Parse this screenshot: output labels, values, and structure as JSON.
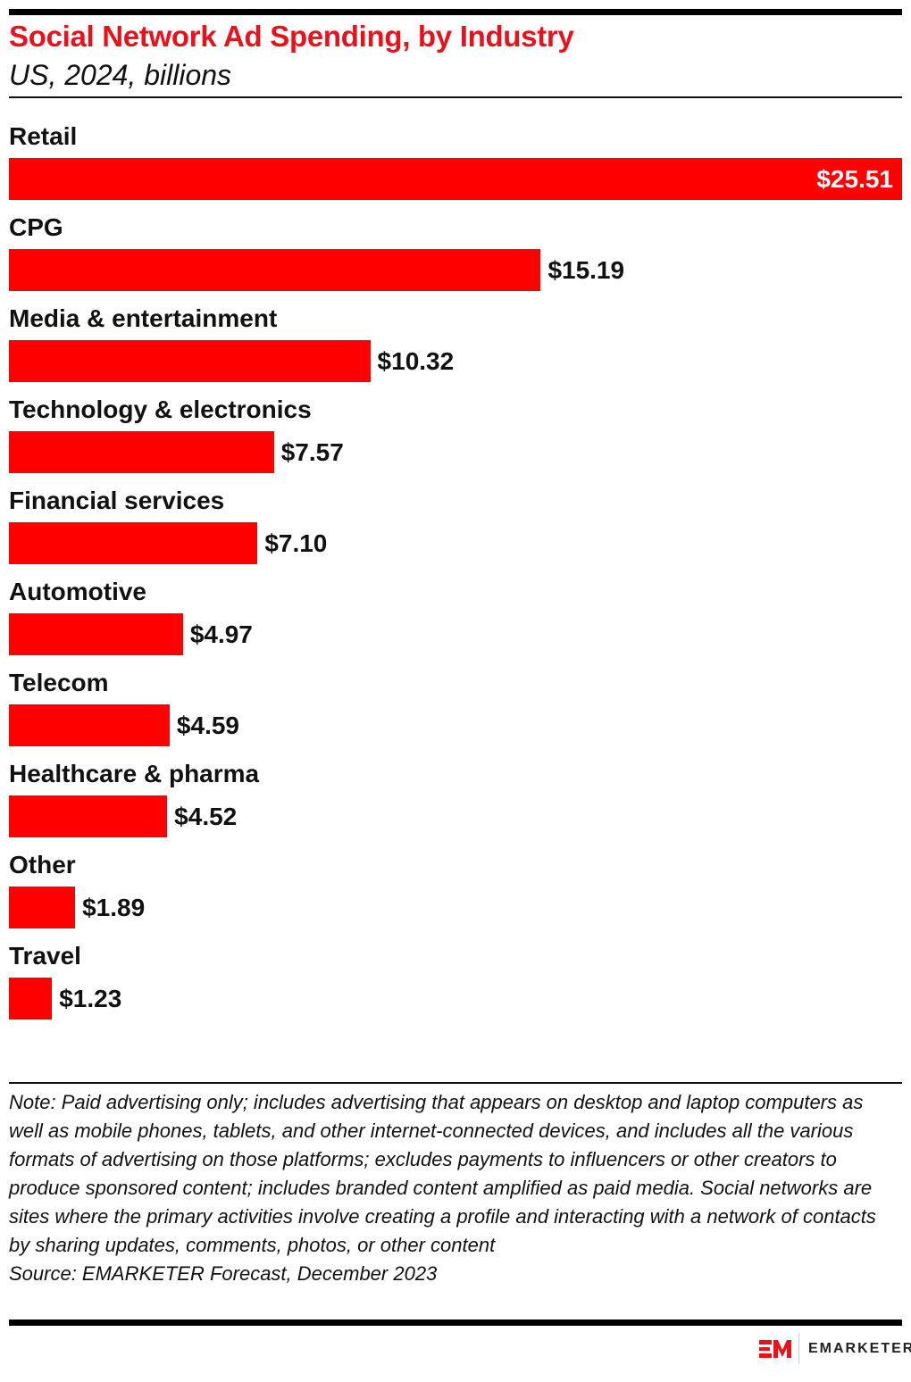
{
  "header": {
    "title": "Social Network Ad Spending, by Industry",
    "subtitle": "US, 2024, billions"
  },
  "chart_data": {
    "type": "bar",
    "orientation": "horizontal",
    "title": "Social Network Ad Spending, by Industry",
    "subtitle": "US, 2024, billions",
    "categories": [
      "Retail",
      "CPG",
      "Media & entertainment",
      "Technology & electronics",
      "Financial services",
      "Automotive",
      "Telecom",
      "Healthcare & pharma",
      "Other",
      "Travel"
    ],
    "values": [
      25.51,
      15.19,
      10.32,
      7.57,
      7.1,
      4.97,
      4.59,
      4.52,
      1.89,
      1.23
    ],
    "labels": [
      "$25.51",
      "$15.19",
      "$10.32",
      "$7.57",
      "$7.10",
      "$4.97",
      "$4.59",
      "$4.52",
      "$1.89",
      "$1.23"
    ],
    "xlim": [
      0,
      25.51
    ],
    "grid": false,
    "legend": "none",
    "bar_color": "#ff0000"
  },
  "footer": {
    "note": "Note: Paid advertising only; includes advertising that appears on desktop and laptop computers as well as mobile phones, tablets, and other internet-connected devices, and includes all the various formats of advertising on those platforms; excludes payments to influencers or other creators to produce sponsored content; includes branded content amplified as paid media. Social networks are sites where the primary activities involve creating a profile and interacting with a network of contacts by sharing updates, comments, photos, or other content",
    "source": "Source: EMARKETER Forecast, December 2023",
    "brand": "EMARKETER",
    "brand_color": "#e8121c"
  }
}
